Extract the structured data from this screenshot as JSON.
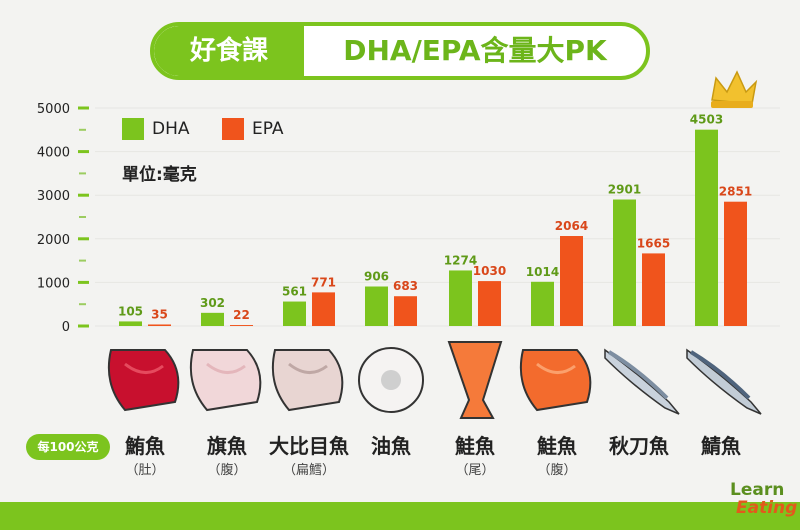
{
  "title": {
    "left": "好食課",
    "right": "DHA/EPA含量大PK"
  },
  "legend": {
    "dha": "DHA",
    "epa": "EPA",
    "unit": "單位:毫克"
  },
  "per_100g": "每100公克",
  "colors": {
    "dha": "#7cc41e",
    "epa": "#f0541c",
    "green": "#7cc41e"
  },
  "fish": [
    {
      "name": "鮪魚",
      "sub": "（肚）"
    },
    {
      "name": "旗魚",
      "sub": "（腹）"
    },
    {
      "name": "大比目魚",
      "sub": "（扁鱈）"
    },
    {
      "name": "油魚",
      "sub": ""
    },
    {
      "name": "鮭魚",
      "sub": "（尾）"
    },
    {
      "name": "鮭魚",
      "sub": "（腹）"
    },
    {
      "name": "秋刀魚",
      "sub": ""
    },
    {
      "name": "鯖魚",
      "sub": ""
    }
  ],
  "logo": {
    "line1": "Learn",
    "line2": "Eating"
  },
  "chart_data": {
    "type": "bar",
    "categories": [
      "鮪魚（肚）",
      "旗魚（腹）",
      "大比目魚（扁鱈）",
      "油魚",
      "鮭魚（尾）",
      "鮭魚（腹）",
      "秋刀魚",
      "鯖魚"
    ],
    "series": [
      {
        "name": "DHA",
        "values": [
          105,
          302,
          561,
          906,
          1274,
          1014,
          2901,
          4503
        ]
      },
      {
        "name": "EPA",
        "values": [
          35,
          22,
          771,
          683,
          1030,
          2064,
          1665,
          2851
        ]
      }
    ],
    "yticks": [
      "0",
      "1000",
      "2000",
      "3000",
      "4000",
      "5000"
    ],
    "ylim": [
      0,
      5000
    ],
    "title": "DHA/EPA含量大PK",
    "ylabel": "單位:毫克",
    "legend_position": "top-left"
  }
}
